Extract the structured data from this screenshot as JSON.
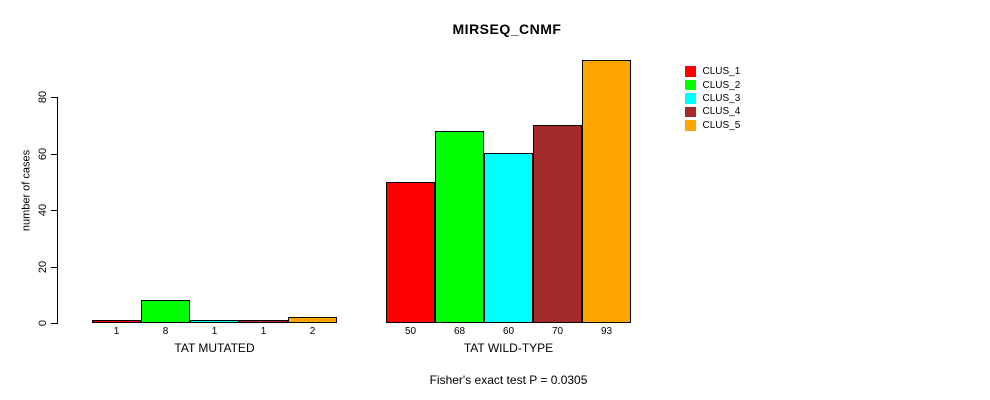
{
  "chart_data": {
    "type": "bar",
    "title": "MIRSEQ_CNMF",
    "footer": "Fisher's exact test P = 0.0305",
    "ylabel": "number of cases",
    "xlabel": "",
    "yticks": [
      0,
      20,
      40,
      60,
      80
    ],
    "ylim": [
      0,
      93
    ],
    "grid": false,
    "legend_position": "right",
    "bar_value_labels_shown": true,
    "categories": [
      "TAT MUTATED",
      "TAT WILD-TYPE"
    ],
    "series": [
      {
        "name": "CLUS_1",
        "color": "#ff0000",
        "values": [
          1,
          50
        ]
      },
      {
        "name": "CLUS_2",
        "color": "#00ff00",
        "values": [
          8,
          68
        ]
      },
      {
        "name": "CLUS_3",
        "color": "#00ffff",
        "values": [
          1,
          60
        ]
      },
      {
        "name": "CLUS_4",
        "color": "#a52a2a",
        "values": [
          1,
          70
        ]
      },
      {
        "name": "CLUS_5",
        "color": "#ffa500",
        "values": [
          2,
          93
        ]
      }
    ],
    "colors": {
      "axis": "#000000",
      "text": "#000000",
      "background": "#ffffff",
      "bar_border": "#000000"
    }
  }
}
